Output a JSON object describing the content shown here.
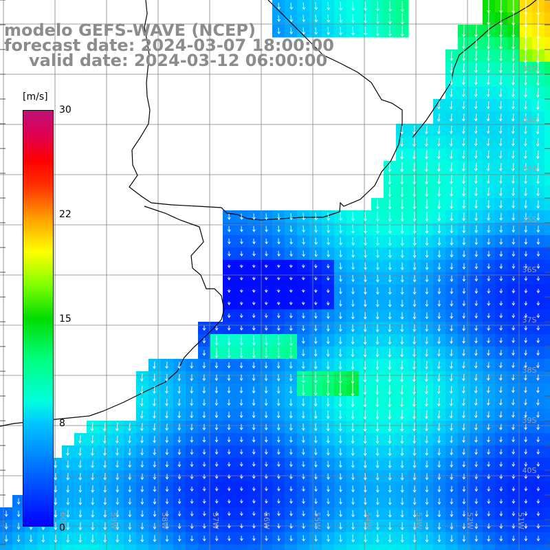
{
  "title": {
    "line1": "modelo GEFS-WAVE (NCEP)",
    "line2": "forecast date: 2024-03-07 18:00:00",
    "line3": "valid date: 2024-03-12 06:00:00"
  },
  "colorbar": {
    "unit": "[m/s]",
    "min": 0,
    "max": 30,
    "ticks": [
      {
        "value": 30,
        "label": "30"
      },
      {
        "value": 22,
        "label": "22"
      },
      {
        "value": 15,
        "label": "15"
      },
      {
        "value": 8,
        "label": "8"
      },
      {
        "value": 0,
        "label": "0"
      }
    ]
  },
  "map": {
    "lat_labels": [
      "32S",
      "33S",
      "34S",
      "35S",
      "36S",
      "37S",
      "38S",
      "39S",
      "40S"
    ],
    "lon_labels": [
      "60W",
      "59W",
      "58W",
      "57W",
      "56W",
      "55W",
      "54W",
      "53W",
      "52W",
      "51W"
    ],
    "land_color": "#ffffff",
    "grid_color": "#808080",
    "coast_color": "#000000",
    "arrow_color": "#ffffff"
  }
}
